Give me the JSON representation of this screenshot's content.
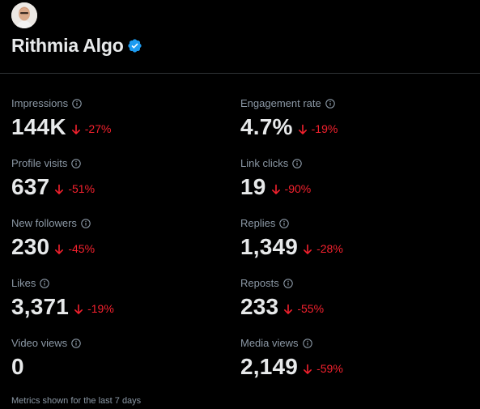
{
  "profile": {
    "name": "Rithmia Algo",
    "verified": true
  },
  "colors": {
    "background": "#000000",
    "text_primary": "#e7e9ea",
    "text_secondary": "#8b98a5",
    "negative": "#f4212e",
    "verified_blue": "#1d9bf0"
  },
  "metrics": {
    "impressions": {
      "label": "Impressions",
      "value": "144K",
      "change": "-27%",
      "icon": "info-icon"
    },
    "engagement_rate": {
      "label": "Engagement rate",
      "value": "4.7%",
      "change": "-19%",
      "icon": "info-icon"
    },
    "profile_visits": {
      "label": "Profile visits",
      "value": "637",
      "change": "-51%",
      "icon": "info-icon"
    },
    "link_clicks": {
      "label": "Link clicks",
      "value": "19",
      "change": "-90%",
      "icon": "info-icon"
    },
    "new_followers": {
      "label": "New followers",
      "value": "230",
      "change": "-45%",
      "icon": "info-icon"
    },
    "replies": {
      "label": "Replies",
      "value": "1,349",
      "change": "-28%",
      "icon": "info-icon"
    },
    "likes": {
      "label": "Likes",
      "value": "3,371",
      "change": "-19%",
      "icon": "info-icon"
    },
    "reposts": {
      "label": "Reposts",
      "value": "233",
      "change": "-55%",
      "icon": "info-icon"
    },
    "video_views": {
      "label": "Video views",
      "value": "0",
      "icon": "info-icon"
    },
    "media_views": {
      "label": "Media views",
      "value": "2,149",
      "change": "-59%",
      "icon": "info-icon"
    }
  },
  "footer": {
    "note": "Metrics shown for the last 7 days"
  }
}
